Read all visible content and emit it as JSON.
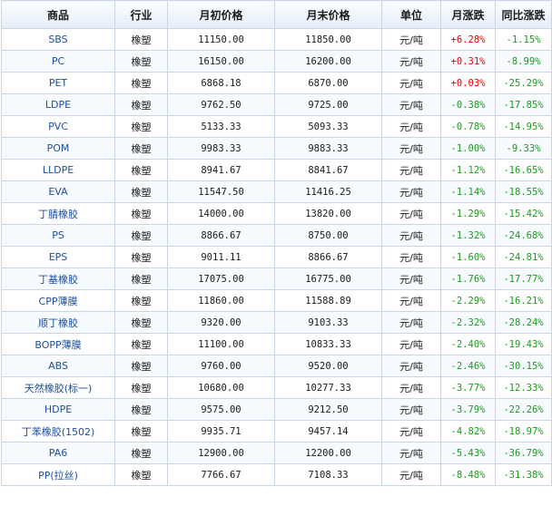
{
  "headers": [
    "商品",
    "行业",
    "月初价格",
    "月末价格",
    "单位",
    "月涨跌",
    "同比涨跌"
  ],
  "rows": [
    {
      "name": "SBS",
      "industry": "橡塑",
      "start": "11150.00",
      "end": "11850.00",
      "unit": "元/吨",
      "month": "+6.28%",
      "yoy": "-1.15%"
    },
    {
      "name": "PC",
      "industry": "橡塑",
      "start": "16150.00",
      "end": "16200.00",
      "unit": "元/吨",
      "month": "+0.31%",
      "yoy": "-8.99%"
    },
    {
      "name": "PET",
      "industry": "橡塑",
      "start": "6868.18",
      "end": "6870.00",
      "unit": "元/吨",
      "month": "+0.03%",
      "yoy": "-25.29%"
    },
    {
      "name": "LDPE",
      "industry": "橡塑",
      "start": "9762.50",
      "end": "9725.00",
      "unit": "元/吨",
      "month": "-0.38%",
      "yoy": "-17.85%"
    },
    {
      "name": "PVC",
      "industry": "橡塑",
      "start": "5133.33",
      "end": "5093.33",
      "unit": "元/吨",
      "month": "-0.78%",
      "yoy": "-14.95%"
    },
    {
      "name": "POM",
      "industry": "橡塑",
      "start": "9983.33",
      "end": "9883.33",
      "unit": "元/吨",
      "month": "-1.00%",
      "yoy": "-9.33%"
    },
    {
      "name": "LLDPE",
      "industry": "橡塑",
      "start": "8941.67",
      "end": "8841.67",
      "unit": "元/吨",
      "month": "-1.12%",
      "yoy": "-16.65%"
    },
    {
      "name": "EVA",
      "industry": "橡塑",
      "start": "11547.50",
      "end": "11416.25",
      "unit": "元/吨",
      "month": "-1.14%",
      "yoy": "-18.55%"
    },
    {
      "name": "丁腈橡胶",
      "industry": "橡塑",
      "start": "14000.00",
      "end": "13820.00",
      "unit": "元/吨",
      "month": "-1.29%",
      "yoy": "-15.42%"
    },
    {
      "name": "PS",
      "industry": "橡塑",
      "start": "8866.67",
      "end": "8750.00",
      "unit": "元/吨",
      "month": "-1.32%",
      "yoy": "-24.68%"
    },
    {
      "name": "EPS",
      "industry": "橡塑",
      "start": "9011.11",
      "end": "8866.67",
      "unit": "元/吨",
      "month": "-1.60%",
      "yoy": "-24.81%"
    },
    {
      "name": "丁基橡胶",
      "industry": "橡塑",
      "start": "17075.00",
      "end": "16775.00",
      "unit": "元/吨",
      "month": "-1.76%",
      "yoy": "-17.77%"
    },
    {
      "name": "CPP薄膜",
      "industry": "橡塑",
      "start": "11860.00",
      "end": "11588.89",
      "unit": "元/吨",
      "month": "-2.29%",
      "yoy": "-16.21%"
    },
    {
      "name": "顺丁橡胶",
      "industry": "橡塑",
      "start": "9320.00",
      "end": "9103.33",
      "unit": "元/吨",
      "month": "-2.32%",
      "yoy": "-28.24%"
    },
    {
      "name": "BOPP薄膜",
      "industry": "橡塑",
      "start": "11100.00",
      "end": "10833.33",
      "unit": "元/吨",
      "month": "-2.40%",
      "yoy": "-19.43%"
    },
    {
      "name": "ABS",
      "industry": "橡塑",
      "start": "9760.00",
      "end": "9520.00",
      "unit": "元/吨",
      "month": "-2.46%",
      "yoy": "-30.15%"
    },
    {
      "name": "天然橡胶(标一)",
      "industry": "橡塑",
      "start": "10680.00",
      "end": "10277.33",
      "unit": "元/吨",
      "month": "-3.77%",
      "yoy": "-12.33%"
    },
    {
      "name": "HDPE",
      "industry": "橡塑",
      "start": "9575.00",
      "end": "9212.50",
      "unit": "元/吨",
      "month": "-3.79%",
      "yoy": "-22.26%"
    },
    {
      "name": "丁苯橡胶(1502)",
      "industry": "橡塑",
      "start": "9935.71",
      "end": "9457.14",
      "unit": "元/吨",
      "month": "-4.82%",
      "yoy": "-18.97%"
    },
    {
      "name": "PA6",
      "industry": "橡塑",
      "start": "12900.00",
      "end": "12200.00",
      "unit": "元/吨",
      "month": "-5.43%",
      "yoy": "-36.79%"
    },
    {
      "name": "PP(拉丝)",
      "industry": "橡塑",
      "start": "7766.67",
      "end": "7108.33",
      "unit": "元/吨",
      "month": "-8.48%",
      "yoy": "-31.38%"
    }
  ],
  "colors": {
    "up": "#e60000",
    "down": "#1c9a1c",
    "link": "#1e4fa0",
    "border": "#c9d6e6"
  }
}
